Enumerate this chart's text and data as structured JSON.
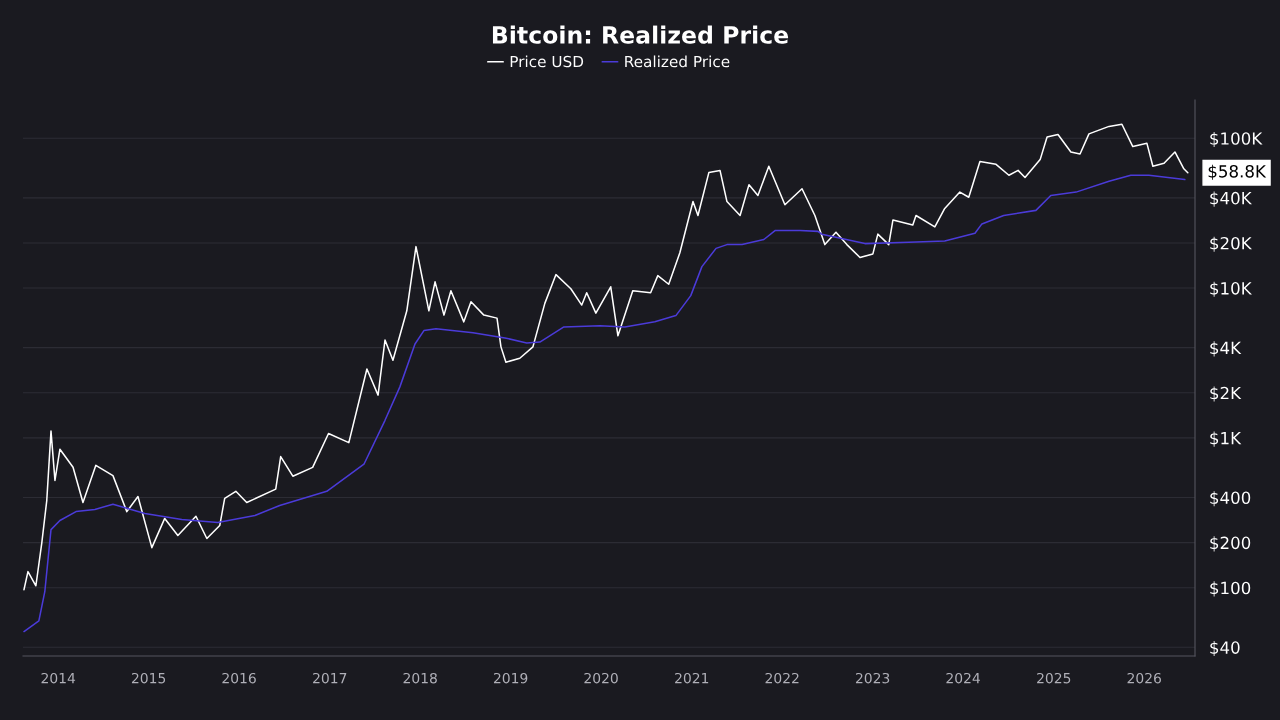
{
  "chart_data": {
    "type": "line",
    "title": "Bitcoin: Realized Price",
    "log": "y",
    "grid": "y",
    "legend": "top",
    "marker": "none",
    "line_style": "solid",
    "xlim": [
      "2013-08-12",
      "2026-07-25"
    ],
    "ylim": [
      35,
      180000
    ],
    "xticks": [
      "2014",
      "2015",
      "2016",
      "2017",
      "2018",
      "2019",
      "2020",
      "2021",
      "2022",
      "2023",
      "2024",
      "2025",
      "2026"
    ],
    "yticks": [
      {
        "value": 40,
        "label": "$40"
      },
      {
        "value": 100,
        "label": "$100"
      },
      {
        "value": 200,
        "label": "$200"
      },
      {
        "value": 400,
        "label": "$400"
      },
      {
        "value": 1000,
        "label": "$1K"
      },
      {
        "value": 2000,
        "label": "$2K"
      },
      {
        "value": 4000,
        "label": "$4K"
      },
      {
        "value": 10000,
        "label": "$10K"
      },
      {
        "value": 20000,
        "label": "$20K"
      },
      {
        "value": 40000,
        "label": "$40K"
      },
      {
        "value": 100000,
        "label": "$100K"
      }
    ],
    "annotations": [
      {
        "text": "$58.8K",
        "x": "2026-06-26",
        "y": 58800
      }
    ],
    "series": [
      {
        "name": "Price USD",
        "color": "#ffffff",
        "x": [
          "2013-08-16",
          "2013-09-01",
          "2013-10-03",
          "2013-10-27",
          "2013-11-16",
          "2013-12-03",
          "2013-12-19",
          "2014-01-08",
          "2014-03-02",
          "2014-04-11",
          "2014-06-02",
          "2014-08-10",
          "2014-10-05",
          "2014-11-19",
          "2015-01-14",
          "2015-03-07",
          "2015-04-29",
          "2015-07-11",
          "2015-08-24",
          "2015-10-15",
          "2015-11-04",
          "2015-12-19",
          "2016-02-01",
          "2016-05-28",
          "2016-06-17",
          "2016-08-05",
          "2016-10-24",
          "2016-12-27",
          "2017-03-19",
          "2017-05-31",
          "2017-07-15",
          "2017-08-12",
          "2017-09-13",
          "2017-11-08",
          "2017-12-15",
          "2018-02-05",
          "2018-03-02",
          "2018-04-07",
          "2018-05-05",
          "2018-06-26",
          "2018-07-25",
          "2018-09-15",
          "2018-11-07",
          "2018-11-23",
          "2018-12-13",
          "2019-02-07",
          "2019-04-01",
          "2019-05-19",
          "2019-07-03",
          "2019-09-01",
          "2019-10-15",
          "2019-11-04",
          "2019-12-11",
          "2020-02-09",
          "2020-03-09",
          "2020-05-08",
          "2020-07-19",
          "2020-08-17",
          "2020-09-30",
          "2020-11-14",
          "2021-01-06",
          "2021-01-26",
          "2021-03-11",
          "2021-04-25",
          "2021-05-23",
          "2021-07-15",
          "2021-08-20",
          "2021-09-25",
          "2021-11-08",
          "2022-01-12",
          "2022-03-22",
          "2022-05-13",
          "2022-06-22",
          "2022-08-06",
          "2022-09-19",
          "2022-11-11",
          "2023-01-02",
          "2023-01-22",
          "2023-03-07",
          "2023-03-24",
          "2023-06-12",
          "2023-06-25",
          "2023-09-09",
          "2023-10-19",
          "2023-12-19",
          "2024-01-24",
          "2024-03-09",
          "2024-05-13",
          "2024-07-04",
          "2024-08-10",
          "2024-09-07",
          "2024-11-07",
          "2024-12-05",
          "2025-01-18",
          "2025-03-11",
          "2025-04-17",
          "2025-05-23",
          "2025-08-12",
          "2025-10-03",
          "2025-11-16",
          "2026-01-12",
          "2026-02-05",
          "2026-03-22",
          "2026-05-05",
          "2026-06-10",
          "2026-06-26"
        ],
        "values": [
          97,
          128,
          103,
          200,
          383,
          1110,
          520,
          840,
          636,
          370,
          656,
          560,
          322,
          406,
          185,
          290,
          223,
          300,
          213,
          260,
          395,
          440,
          370,
          455,
          750,
          555,
          636,
          1070,
          930,
          2880,
          1930,
          4500,
          3300,
          7050,
          18900,
          7050,
          11000,
          6600,
          9600,
          5950,
          8100,
          6600,
          6300,
          4050,
          3200,
          3400,
          4050,
          7900,
          12300,
          9900,
          7700,
          9300,
          6800,
          10200,
          4800,
          9600,
          9300,
          12100,
          10600,
          17200,
          37800,
          30500,
          59000,
          61000,
          37800,
          30500,
          49000,
          41500,
          65000,
          36000,
          46000,
          30500,
          19500,
          23600,
          19500,
          16000,
          16900,
          22900,
          19500,
          28500,
          26400,
          30500,
          25600,
          34000,
          43700,
          40400,
          70000,
          67000,
          56600,
          61000,
          54700,
          72000,
          102000,
          106000,
          81000,
          78500,
          107000,
          120000,
          124000,
          88000,
          92500,
          65000,
          68000,
          81000,
          62500,
          58800
        ]
      },
      {
        "name": "Realized Price",
        "color": "#4b3bd9",
        "x": [
          "2013-08-16",
          "2013-10-15",
          "2013-11-08",
          "2013-12-03",
          "2014-01-08",
          "2014-03-14",
          "2014-05-29",
          "2014-08-10",
          "2014-12-17",
          "2015-05-15",
          "2015-10-07",
          "2016-03-05",
          "2016-06-13",
          "2016-12-20",
          "2017-05-19",
          "2017-08-12",
          "2017-10-11",
          "2017-12-11",
          "2018-01-16",
          "2018-03-06",
          "2018-08-02",
          "2018-12-09",
          "2019-03-07",
          "2019-04-29",
          "2019-08-04",
          "2019-12-27",
          "2020-04-06",
          "2020-08-05",
          "2020-10-29",
          "2020-12-28",
          "2021-02-11",
          "2021-04-09",
          "2021-05-23",
          "2021-07-23",
          "2021-10-19",
          "2021-12-03",
          "2022-03-14",
          "2022-05-25",
          "2022-06-10",
          "2022-12-01",
          "2023-05-27",
          "2023-10-19",
          "2024-02-18",
          "2024-03-17",
          "2024-06-13",
          "2024-10-21",
          "2024-12-20",
          "2025-04-01",
          "2025-08-12",
          "2025-11-08",
          "2026-01-20",
          "2026-06-14"
        ],
        "values": [
          51,
          60,
          94,
          244,
          281,
          322,
          333,
          360,
          313,
          285,
          272,
          303,
          354,
          440,
          667,
          1310,
          2190,
          4230,
          5200,
          5350,
          5030,
          4650,
          4300,
          4360,
          5500,
          5600,
          5500,
          5950,
          6550,
          8900,
          13900,
          18400,
          19500,
          19500,
          21100,
          24200,
          24200,
          23900,
          22900,
          19800,
          20200,
          20600,
          23200,
          26800,
          30500,
          33000,
          41500,
          43700,
          51700,
          56600,
          56600,
          53000
        ]
      }
    ]
  }
}
